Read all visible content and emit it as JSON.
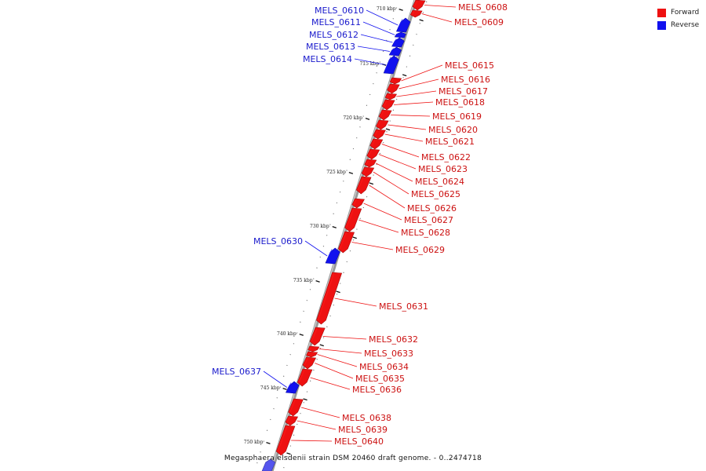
{
  "legend": [
    {
      "label": "Forward",
      "color": "#ee1111"
    },
    {
      "label": "Reverse",
      "color": "#1111ee"
    }
  ],
  "caption": "Megasphaera elsdenii strain DSM 20460 draft genome. - 0..2474718",
  "colors": {
    "forward": "#ee1111",
    "reverse": "#1111ee",
    "backbone": "#888888"
  },
  "ticks": [
    "710 kbp",
    "715 kbp",
    "720 kbp",
    "725 kbp",
    "730 kbp",
    "735 kbp",
    "740 kbp",
    "745 kbp",
    "750 kbp"
  ],
  "genes": [
    {
      "name": "MELS_0608",
      "strand": "forward"
    },
    {
      "name": "MELS_0609",
      "strand": "forward"
    },
    {
      "name": "MELS_0610",
      "strand": "reverse"
    },
    {
      "name": "MELS_0611",
      "strand": "reverse"
    },
    {
      "name": "MELS_0612",
      "strand": "reverse"
    },
    {
      "name": "MELS_0613",
      "strand": "reverse"
    },
    {
      "name": "MELS_0614",
      "strand": "reverse"
    },
    {
      "name": "MELS_0615",
      "strand": "forward"
    },
    {
      "name": "MELS_0616",
      "strand": "forward"
    },
    {
      "name": "MELS_0617",
      "strand": "forward"
    },
    {
      "name": "MELS_0618",
      "strand": "forward"
    },
    {
      "name": "MELS_0619",
      "strand": "forward"
    },
    {
      "name": "MELS_0620",
      "strand": "forward"
    },
    {
      "name": "MELS_0621",
      "strand": "forward"
    },
    {
      "name": "MELS_0622",
      "strand": "forward"
    },
    {
      "name": "MELS_0623",
      "strand": "forward"
    },
    {
      "name": "MELS_0624",
      "strand": "forward"
    },
    {
      "name": "MELS_0625",
      "strand": "forward"
    },
    {
      "name": "MELS_0626",
      "strand": "forward"
    },
    {
      "name": "MELS_0627",
      "strand": "forward"
    },
    {
      "name": "MELS_0628",
      "strand": "forward"
    },
    {
      "name": "MELS_0629",
      "strand": "forward"
    },
    {
      "name": "MELS_0630",
      "strand": "reverse"
    },
    {
      "name": "MELS_0631",
      "strand": "forward"
    },
    {
      "name": "MELS_0632",
      "strand": "forward"
    },
    {
      "name": "MELS_0633",
      "strand": "forward"
    },
    {
      "name": "MELS_0634",
      "strand": "forward"
    },
    {
      "name": "MELS_0635",
      "strand": "forward"
    },
    {
      "name": "MELS_0636",
      "strand": "forward"
    },
    {
      "name": "MELS_0637",
      "strand": "reverse"
    },
    {
      "name": "MELS_0638",
      "strand": "forward"
    },
    {
      "name": "MELS_0639",
      "strand": "forward"
    },
    {
      "name": "MELS_0640",
      "strand": "forward"
    }
  ]
}
